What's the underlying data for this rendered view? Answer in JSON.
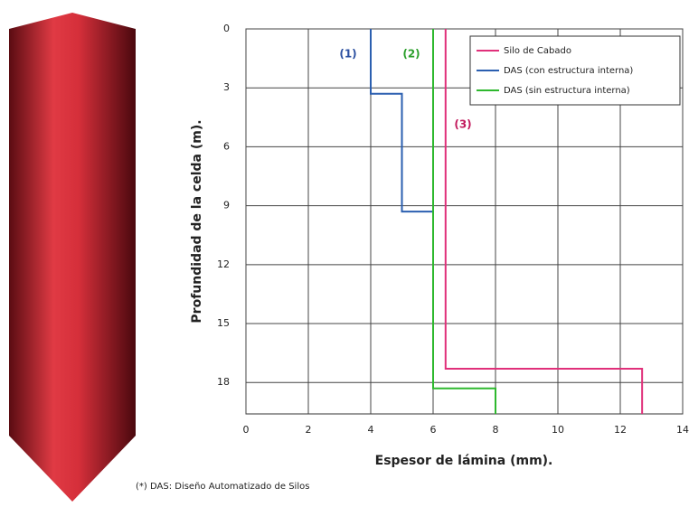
{
  "chart_data": {
    "type": "line",
    "y_label": "Profundidad de la celda (m).",
    "x_label": "Espesor de lámina (mm).",
    "footnote": "(*) DAS: Diseño Automatizado de Silos",
    "xlim": [
      0,
      14
    ],
    "xticks": [
      0,
      2,
      4,
      6,
      8,
      10,
      12,
      14
    ],
    "ylim": [
      0,
      19.6
    ],
    "yticks": [
      0,
      3,
      6,
      9,
      12,
      15,
      18
    ],
    "y_inverted": true,
    "grid": true,
    "legend": "upper right",
    "annotations": [
      {
        "text": "(1)",
        "color": "#2b4fa0"
      },
      {
        "text": "(2)",
        "color": "#2ca02c"
      },
      {
        "text": "(3)",
        "color": "#c2185b"
      }
    ],
    "series": [
      {
        "name": "Silo de Cabado",
        "color": "#e0307a",
        "x": [
          6.4,
          6.4,
          12.7,
          12.7
        ],
        "values": [
          0,
          17.3,
          17.3,
          19.6
        ]
      },
      {
        "name": "DAS (con estructura interna)",
        "color": "#2b5fb0",
        "x": [
          4,
          4,
          5,
          5,
          6
        ],
        "values": [
          0,
          3.3,
          3.3,
          9.3,
          9.3
        ]
      },
      {
        "name": "DAS (sin estructura interna)",
        "color": "#2eb82e",
        "x": [
          6,
          6,
          8,
          8
        ],
        "values": [
          0,
          18.3,
          18.3,
          19.6
        ]
      }
    ]
  }
}
